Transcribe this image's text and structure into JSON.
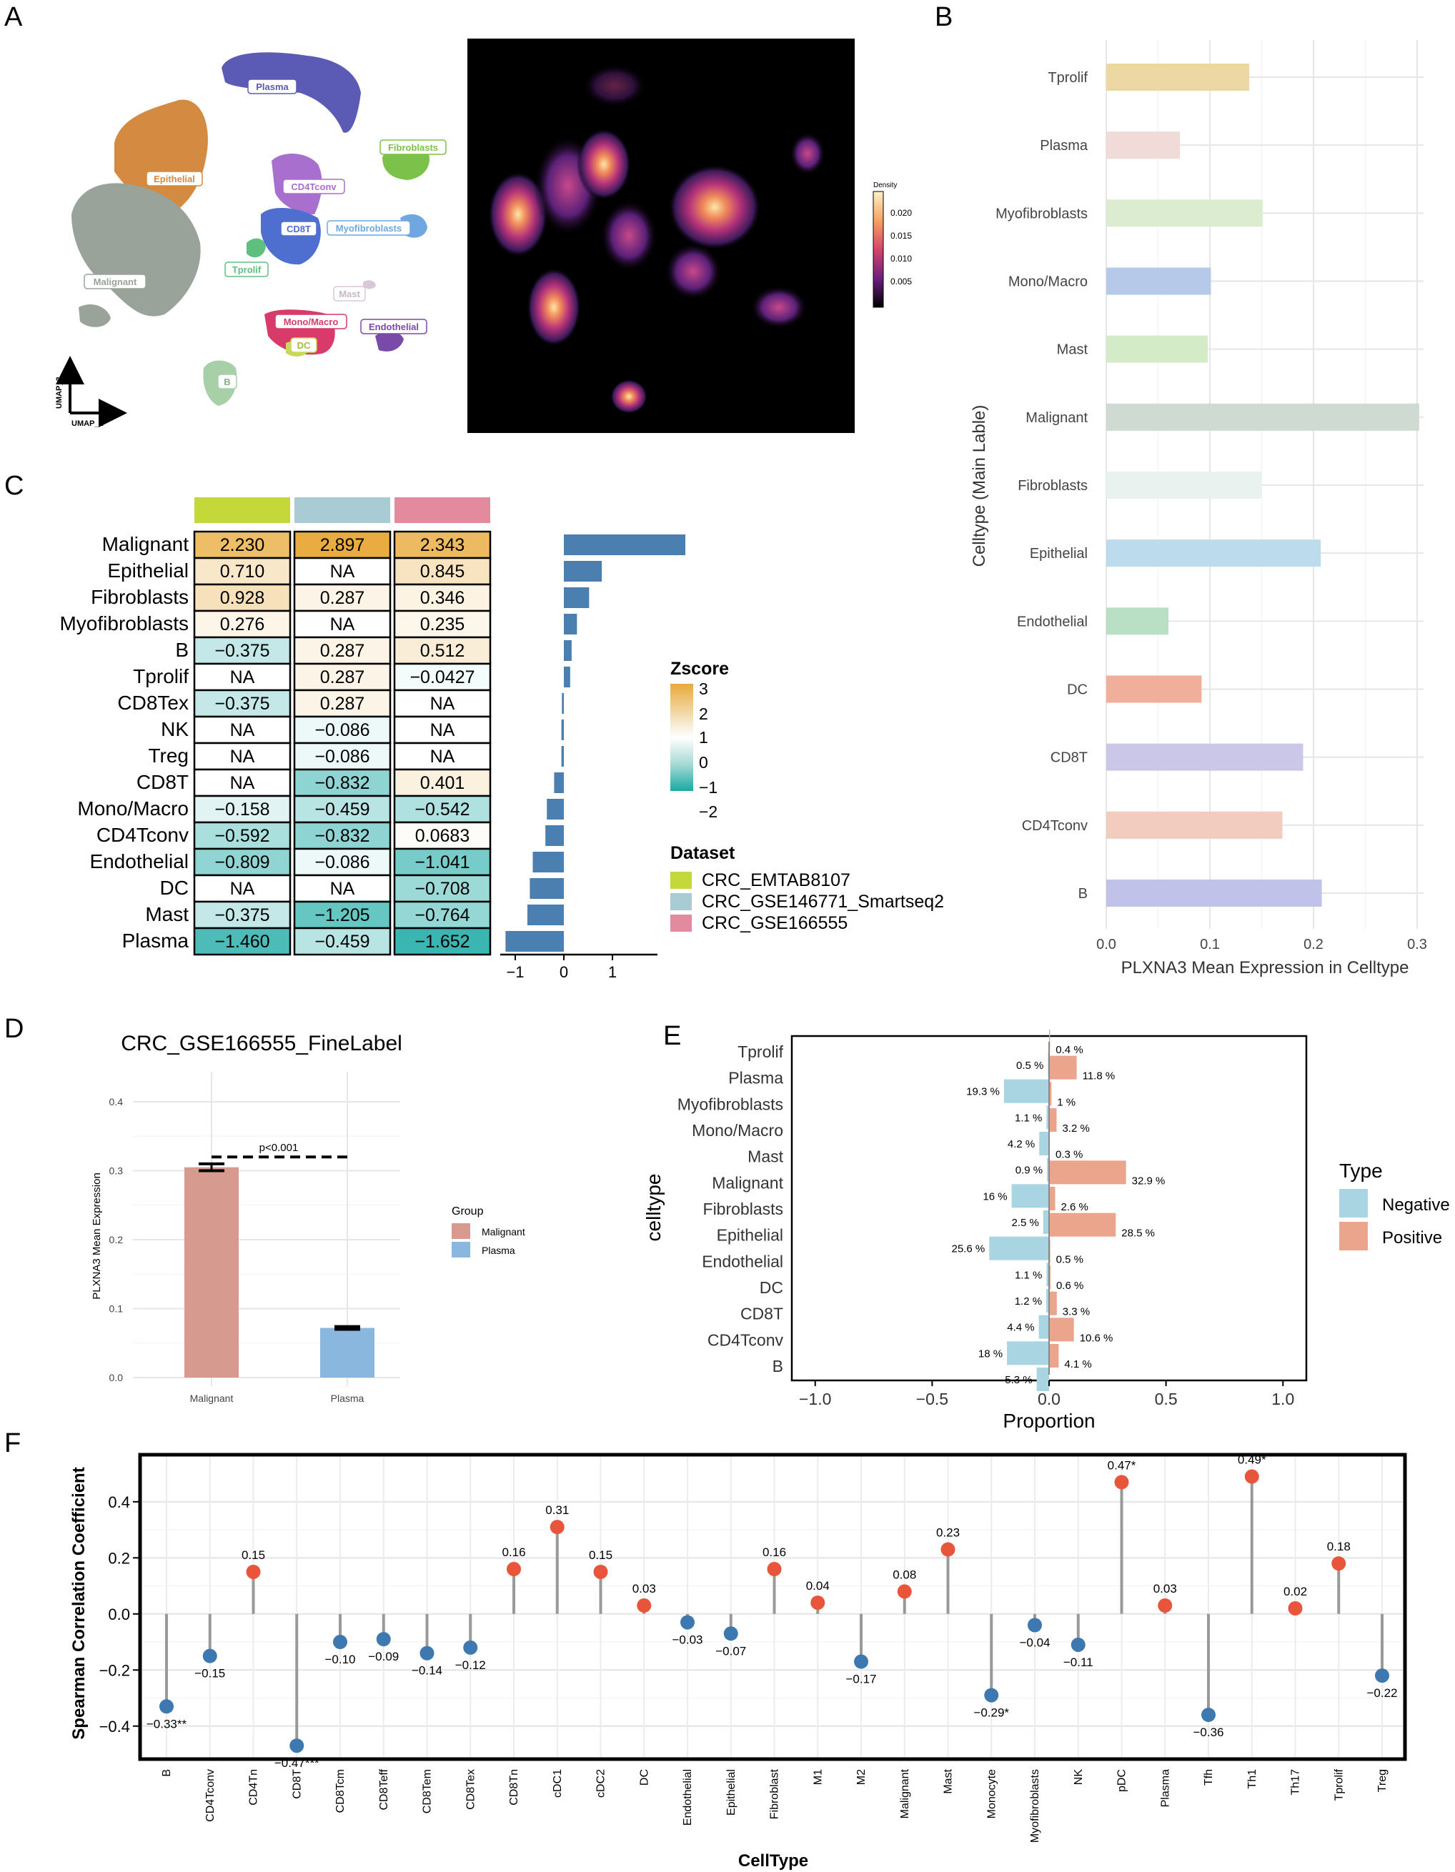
{
  "panels": {
    "A": "A",
    "B": "B",
    "C": "C",
    "D": "D",
    "E": "E",
    "F": "F"
  },
  "umap": {
    "xlabel": "UMAP_1",
    "ylabel": "UMAP_2",
    "clusters": [
      {
        "label": "Plasma",
        "color": "#5b5bb5"
      },
      {
        "label": "Fibroblasts",
        "color": "#7cc24a"
      },
      {
        "label": "Epithelial",
        "color": "#d48a40"
      },
      {
        "label": "CD4Tconv",
        "color": "#a86fcf"
      },
      {
        "label": "CD8T",
        "color": "#4f6fd0"
      },
      {
        "label": "Myofibroblasts",
        "color": "#6fa7e0"
      },
      {
        "label": "Tprolif",
        "color": "#5fbf7f"
      },
      {
        "label": "Malignant",
        "color": "#9aa39a"
      },
      {
        "label": "Mast",
        "color": "#d8c8d8"
      },
      {
        "label": "Mono/Macro",
        "color": "#d83a6a"
      },
      {
        "label": "Endothelial",
        "color": "#7a4aa8"
      },
      {
        "label": "DC",
        "color": "#c8d85a"
      },
      {
        "label": "B",
        "color": "#a8d0a8"
      }
    ]
  },
  "density": {
    "legend_title": "Density",
    "ticks": [
      "0.020",
      "0.015",
      "0.010",
      "0.005"
    ]
  },
  "chart_data": [
    {
      "panel": "B",
      "type": "bar",
      "orientation": "horizontal",
      "xlabel": "PLXNA3 Mean Expression in Celltype",
      "ylabel": "Celltype (Main Lable)",
      "xlim": [
        0,
        0.3
      ],
      "xticks": [
        "0.0",
        "0.1",
        "0.2",
        "0.3"
      ],
      "categories": [
        "Tprolif",
        "Plasma",
        "Myofibroblasts",
        "Mono/Macro",
        "Mast",
        "Malignant",
        "Fibroblasts",
        "Epithelial",
        "Endothelial",
        "DC",
        "CD8T",
        "CD4Tconv",
        "B"
      ],
      "values": [
        0.138,
        0.071,
        0.151,
        0.101,
        0.098,
        0.302,
        0.15,
        0.207,
        0.06,
        0.092,
        0.19,
        0.17,
        0.208
      ],
      "colors": [
        "#edd7a2",
        "#f1dbd8",
        "#dcecd0",
        "#b6c9e9",
        "#d3ebc6",
        "#cfdbd2",
        "#e9f2ef",
        "#bcdbec",
        "#b9e0c4",
        "#efaf9b",
        "#cbc7e9",
        "#f1ccbf",
        "#c1c2ea"
      ]
    },
    {
      "panel": "C",
      "type": "heatmap",
      "rows": [
        "Malignant",
        "Epithelial",
        "Fibroblasts",
        "Myofibroblasts",
        "B",
        "Tprolif",
        "CD8Tex",
        "NK",
        "Treg",
        "CD8T",
        "Mono/Macro",
        "CD4Tconv",
        "Endothelial",
        "DC",
        "Mast",
        "Plasma"
      ],
      "columns": [
        "CRC_EMTAB8107",
        "CRC_GSE146771_Smartseq2",
        "CRC_GSE166555"
      ],
      "column_colors": [
        "#c4d83a",
        "#a9cbd3",
        "#e38a9e"
      ],
      "values": [
        [
          "2.230",
          "2.897",
          "2.343"
        ],
        [
          "0.710",
          "NA",
          "0.845"
        ],
        [
          "0.928",
          "0.287",
          "0.346"
        ],
        [
          "0.276",
          "NA",
          "0.235"
        ],
        [
          "-0.375",
          "0.287",
          "0.512"
        ],
        [
          "NA",
          "0.287",
          "-0.0427"
        ],
        [
          "-0.375",
          "0.287",
          "NA"
        ],
        [
          "NA",
          "-0.086",
          "NA"
        ],
        [
          "NA",
          "-0.086",
          "NA"
        ],
        [
          "NA",
          "-0.832",
          "0.401"
        ],
        [
          "-0.158",
          "-0.459",
          "-0.542"
        ],
        [
          "-0.592",
          "-0.832",
          "0.0683"
        ],
        [
          "-0.809",
          "-0.086",
          "-1.041"
        ],
        [
          "NA",
          "NA",
          "-0.708"
        ],
        [
          "-0.375",
          "-1.205",
          "-0.764"
        ],
        [
          "-1.460",
          "-0.459",
          "-1.652"
        ]
      ],
      "bar_values": [
        2.5,
        0.78,
        0.52,
        0.27,
        0.16,
        0.13,
        -0.04,
        -0.05,
        -0.05,
        -0.2,
        -0.35,
        -0.38,
        -0.64,
        -0.7,
        -0.75,
        -1.2
      ],
      "bar_xlim": [
        -1.3,
        2.5
      ],
      "bar_xticks": [
        "-1",
        "0",
        "1"
      ],
      "bar_color": "#4a7fb0",
      "zscore_title": "Zscore",
      "zscore_ticks": [
        "3",
        "2",
        "1",
        "0",
        "−1",
        "−2"
      ],
      "dataset_title": "Dataset"
    },
    {
      "panel": "D",
      "type": "bar",
      "title": "CRC_GSE166555_FineLabel",
      "ylabel": "PLXNA3 Mean Expression",
      "ylim": [
        0,
        0.4
      ],
      "yticks": [
        "0.4",
        "0.3",
        "0.2",
        "0.1",
        "0.0"
      ],
      "categories": [
        "Malignant",
        "Plasma"
      ],
      "values": [
        0.305,
        0.072
      ],
      "errors": [
        0.005,
        0.002
      ],
      "colors": [
        "#d79a8e",
        "#8ab7dd"
      ],
      "annotation": "p<0.001",
      "legend_title": "Group",
      "legend": [
        "Malignant",
        "Plasma"
      ]
    },
    {
      "panel": "E",
      "type": "bar",
      "orientation": "diverging",
      "xlabel": "Proportion",
      "ylabel": "celltype",
      "xlim": [
        -1.1,
        1.1
      ],
      "xticks": [
        "−1.0",
        "−0.5",
        "0.0",
        "0.5",
        "1.0"
      ],
      "categories": [
        "Tprolif",
        "Plasma",
        "Myofibroblasts",
        "Mono/Macro",
        "Mast",
        "Malignant",
        "Fibroblasts",
        "Epithelial",
        "Endothelial",
        "DC",
        "CD8T",
        "CD4Tconv",
        "B"
      ],
      "series": [
        {
          "name": "Negative",
          "color": "#a9d4e2",
          "values": [
            0.005,
            0.193,
            0.011,
            0.042,
            0.009,
            0.16,
            0.025,
            0.256,
            0.011,
            0.012,
            0.044,
            0.18,
            0.053
          ],
          "labels": [
            "0.5 %",
            "19.3 %",
            "1.1 %",
            "4.2 %",
            "0.9 %",
            "16 %",
            "2.5 %",
            "25.6 %",
            "1.1 %",
            "1.2 %",
            "4.4 %",
            "18 %",
            "5.3 %"
          ]
        },
        {
          "name": "Positive",
          "color": "#eaa58c",
          "values": [
            0.004,
            0.118,
            0.01,
            0.032,
            0.003,
            0.329,
            0.026,
            0.285,
            0.005,
            0.006,
            0.033,
            0.106,
            0.041
          ],
          "labels": [
            "0.4 %",
            "11.8 %",
            "1 %",
            "3.2 %",
            "0.3 %",
            "32.9 %",
            "2.6 %",
            "28.5 %",
            "0.5 %",
            "0.6 %",
            "3.3 %",
            "10.6 %",
            "4.1 %"
          ]
        }
      ],
      "legend_title": "Type"
    },
    {
      "panel": "F",
      "type": "scatter",
      "style": "lollipop",
      "xlabel": "CellType",
      "ylabel": "Spearman Correlation Coefficient",
      "ylim": [
        -0.5,
        0.55
      ],
      "yticks": [
        "0.4",
        "0.2",
        "0.0",
        "−0.2",
        "−0.4"
      ],
      "categories": [
        "B",
        "CD4Tconv",
        "CD4Tn",
        "CD8T",
        "CD8Tcm",
        "CD8Teff",
        "CD8Tem",
        "CD8Tex",
        "CD8Tn",
        "cDC1",
        "cDC2",
        "DC",
        "Endothelial",
        "Epithelial",
        "Fibroblast",
        "M1",
        "M2",
        "Malignant",
        "Mast",
        "Monocyte",
        "Myofibroblasts",
        "NK",
        "pDC",
        "Plasma",
        "Tfh",
        "Th1",
        "Th17",
        "Tprolif",
        "Treg"
      ],
      "values": [
        -0.33,
        -0.15,
        0.15,
        -0.47,
        -0.1,
        -0.09,
        -0.14,
        -0.12,
        0.16,
        0.31,
        0.15,
        0.03,
        -0.03,
        -0.07,
        0.16,
        0.04,
        -0.17,
        0.08,
        0.23,
        -0.29,
        -0.04,
        -0.11,
        0.47,
        0.03,
        -0.36,
        0.49,
        0.02,
        0.18,
        -0.22
      ],
      "labels": [
        "−0.33**",
        "−0.15",
        "0.15",
        "−0.47***",
        "−0.10",
        "−0.09",
        "−0.14",
        "−0.12",
        "0.16",
        "0.31",
        "0.15",
        "0.03",
        "−0.03",
        "−0.07",
        "0.16",
        "0.04",
        "−0.17",
        "0.08",
        "0.23",
        "−0.29*",
        "−0.04",
        "−0.11",
        "0.47*",
        "0.03",
        "−0.36",
        "0.49*",
        "0.02",
        "0.18",
        "−0.22"
      ],
      "positive_color": "#e8553a",
      "negative_color": "#3d78b0"
    }
  ]
}
